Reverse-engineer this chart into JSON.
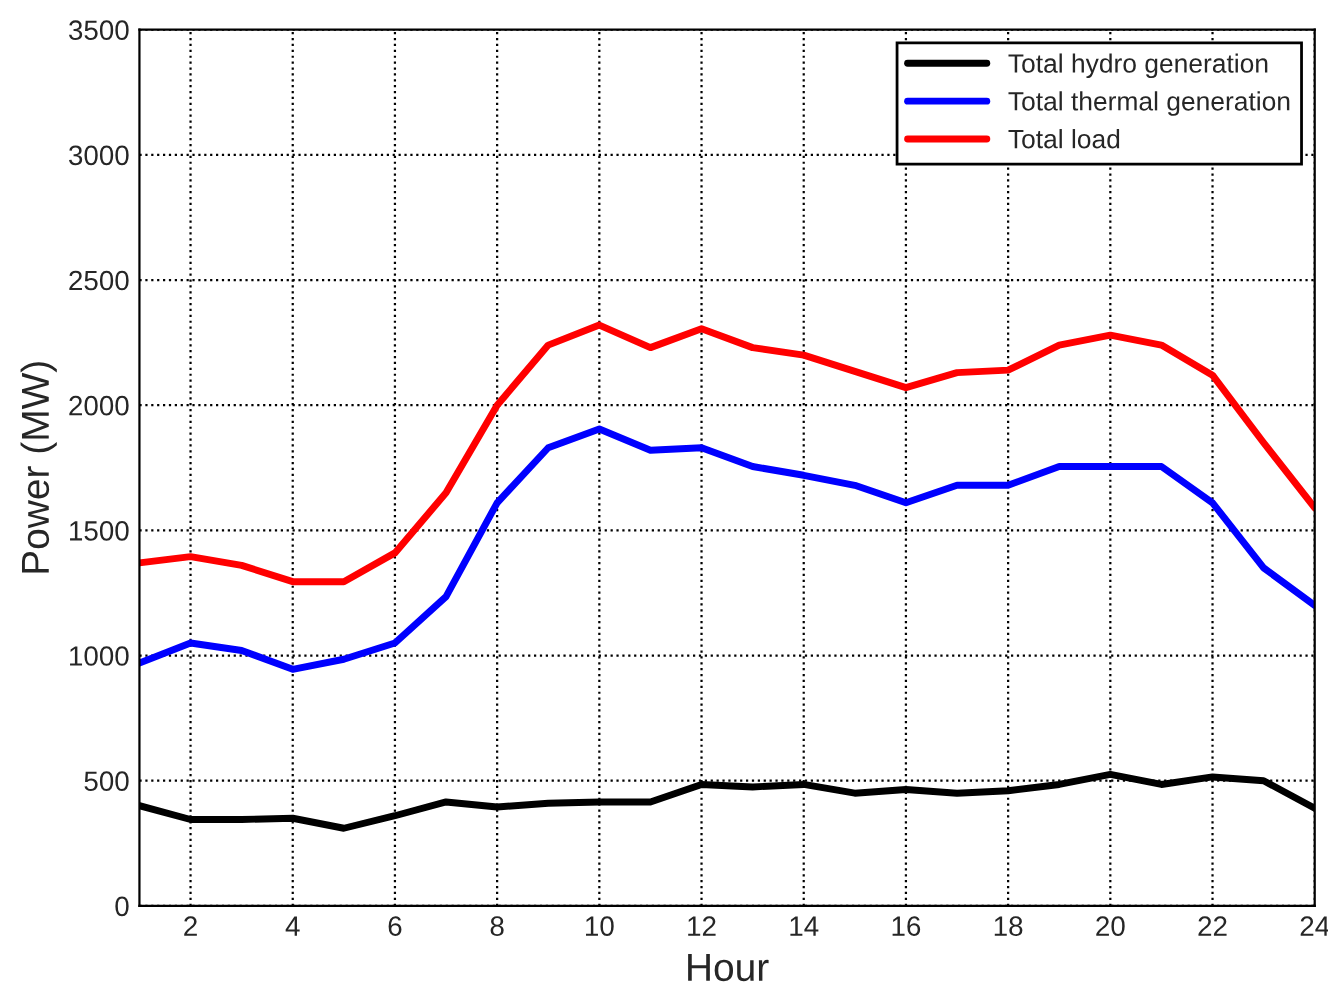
{
  "chart_data": {
    "type": "line",
    "xlabel": "Hour",
    "ylabel": "Power (MW)",
    "x": [
      1,
      2,
      3,
      4,
      5,
      6,
      7,
      8,
      9,
      10,
      11,
      12,
      13,
      14,
      15,
      16,
      17,
      18,
      19,
      20,
      21,
      22,
      23,
      24
    ],
    "series": [
      {
        "name": "Total hydro generation",
        "color": "#000000",
        "values": [
          400,
          345,
          345,
          350,
          310,
          360,
          415,
          395,
          410,
          415,
          415,
          485,
          475,
          485,
          450,
          465,
          450,
          460,
          485,
          525,
          485,
          515,
          500,
          390
        ]
      },
      {
        "name": "Total thermal generation",
        "color": "#0000ff",
        "values": [
          970,
          1050,
          1020,
          945,
          985,
          1050,
          1235,
          1610,
          1830,
          1905,
          1820,
          1830,
          1755,
          1720,
          1680,
          1610,
          1680,
          1680,
          1755,
          1755,
          1755,
          1610,
          1350,
          1200
        ]
      },
      {
        "name": "Total load",
        "color": "#ff0000",
        "values": [
          1370,
          1395,
          1360,
          1295,
          1295,
          1410,
          1650,
          2000,
          2240,
          2320,
          2230,
          2305,
          2230,
          2200,
          2135,
          2070,
          2130,
          2140,
          2240,
          2280,
          2240,
          2120,
          1850,
          1590
        ]
      }
    ],
    "xlim": [
      1,
      24
    ],
    "xticks": [
      2,
      4,
      6,
      8,
      10,
      12,
      14,
      16,
      18,
      20,
      22,
      24
    ],
    "ylim": [
      0,
      3500
    ],
    "yticks": [
      0,
      500,
      1000,
      1500,
      2000,
      2500,
      3000,
      3500
    ],
    "grid": true,
    "legend": "top right",
    "line_style": "solid",
    "marker": "none"
  }
}
